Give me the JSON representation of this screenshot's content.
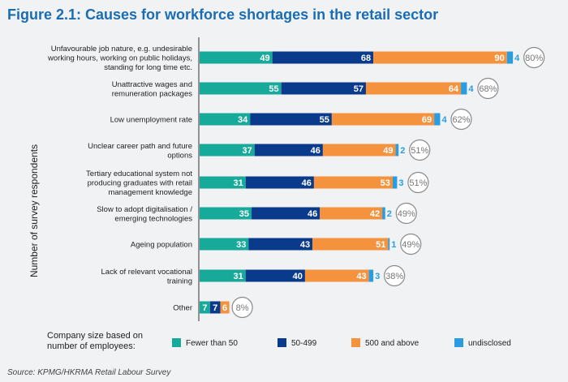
{
  "title": "Figure 2.1:  Causes for workforce shortages in the retail sector",
  "source": "Source: KPMG/HKRMA Retail Labour Survey",
  "legend": {
    "title": "Company size based on number of employees:",
    "items": [
      {
        "label": "Fewer than 50",
        "color": "#17a99a"
      },
      {
        "label": "50-499",
        "color": "#0a3a8c"
      },
      {
        "label": "500 and above",
        "color": "#f5923e"
      },
      {
        "label": "undisclosed",
        "color": "#2a9de0"
      }
    ]
  },
  "chart_data": {
    "type": "bar",
    "orientation": "horizontal",
    "stacked": true,
    "ylabel": "Number of survey respondents",
    "xlabel": "",
    "categories": [
      "Unfavourable job nature, e.g. undesirable working hours, working on public holidays, standing for long time etc.",
      "Unattractive wages and remuneration packages",
      "Low unemployment rate",
      "Unclear career path and future options",
      "Tertiary educational system not producing graduates with retail management knowledge",
      "Slow to adopt digitalisation / emerging technologies",
      "Ageing population",
      "Lack of relevant vocational training",
      "Other"
    ],
    "series": [
      {
        "name": "Fewer than 50",
        "values": [
          49,
          55,
          34,
          37,
          31,
          35,
          33,
          31,
          7
        ]
      },
      {
        "name": "50-499",
        "values": [
          68,
          57,
          55,
          46,
          46,
          46,
          43,
          40,
          7
        ]
      },
      {
        "name": "500 and above",
        "values": [
          90,
          64,
          69,
          49,
          53,
          42,
          51,
          43,
          6
        ]
      },
      {
        "name": "undisclosed",
        "values": [
          4,
          4,
          4,
          2,
          3,
          2,
          1,
          3,
          0
        ]
      }
    ],
    "percentages": [
      "80%",
      "68%",
      "62%",
      "51%",
      "51%",
      "49%",
      "49%",
      "38%",
      "8%"
    ],
    "grid": false,
    "legend_position": "bottom"
  }
}
